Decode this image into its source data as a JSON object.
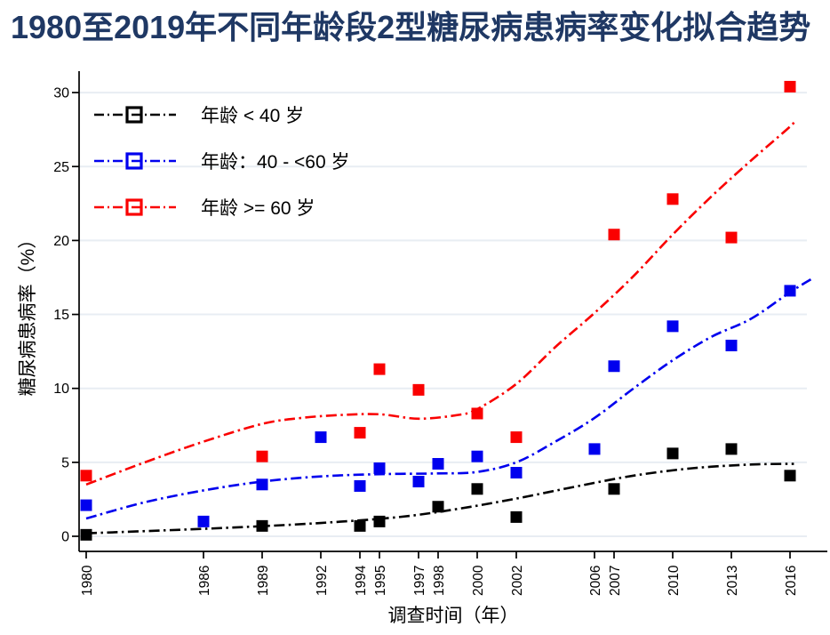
{
  "title": "1980至2019年不同年龄段2型糖尿病患病率变化拟合趋势",
  "colors": {
    "title": "#1f3864",
    "axis": "#000000",
    "gridline": "#e8edf3",
    "series_black": "#000000",
    "series_blue": "#0000ee",
    "series_red": "#fa0000"
  },
  "legend": {
    "items": [
      {
        "label": "年龄 < 40 岁",
        "color": "#000000"
      },
      {
        "label": "年龄：40 - <60 岁",
        "color": "#0000ee"
      },
      {
        "label": "年龄 >= 60 岁",
        "color": "#fa0000"
      }
    ]
  },
  "axes": {
    "x_title": "调查时间（年）",
    "y_title": "糖尿病患病率（%）"
  },
  "chart_data": {
    "type": "scatter",
    "title": "1980至2019年不同年龄段2型糖尿病患病率变化拟合趋势",
    "xlabel": "调查时间（年）",
    "ylabel": "糖尿病患病率（%）",
    "xlim": [
      1979.6,
      2018.2
    ],
    "ylim": [
      0,
      30
    ],
    "x_ticks": [
      1980,
      1986,
      1989,
      1992,
      1994,
      1995,
      1997,
      1998,
      2000,
      2002,
      2006,
      2007,
      2010,
      2013,
      2016
    ],
    "y_ticks": [
      0,
      5,
      10,
      15,
      20,
      25,
      30
    ],
    "grid": "horizontal",
    "legend_position": "top-left",
    "marker": "filled-square",
    "line_style": "dash-dot",
    "series": [
      {
        "name": "年龄 < 40 岁",
        "color": "#000000",
        "points": [
          [
            1980,
            0.1
          ],
          [
            1989,
            0.7
          ],
          [
            1994,
            0.7
          ],
          [
            1995,
            1.0
          ],
          [
            1998,
            2.0
          ],
          [
            2000,
            3.2
          ],
          [
            2002,
            1.3
          ],
          [
            2007,
            3.2
          ],
          [
            2010,
            5.6
          ],
          [
            2013,
            5.9
          ],
          [
            2016,
            4.1
          ]
        ],
        "trend": [
          [
            1980,
            0.2
          ],
          [
            1984,
            0.4
          ],
          [
            1988,
            0.62
          ],
          [
            1992,
            0.9
          ],
          [
            1996,
            1.3
          ],
          [
            1999,
            1.85
          ],
          [
            2002,
            2.55
          ],
          [
            2005,
            3.35
          ],
          [
            2008,
            4.1
          ],
          [
            2011,
            4.6
          ],
          [
            2014,
            4.85
          ],
          [
            2016.2,
            4.9
          ]
        ]
      },
      {
        "name": "年龄：40 - <60 岁",
        "color": "#0000ee",
        "points": [
          [
            1980,
            2.1
          ],
          [
            1986,
            1.0
          ],
          [
            1989,
            3.5
          ],
          [
            1992,
            6.7
          ],
          [
            1994,
            3.4
          ],
          [
            1995,
            4.6
          ],
          [
            1997,
            3.7
          ],
          [
            1998,
            4.9
          ],
          [
            2000,
            5.4
          ],
          [
            2002,
            4.3
          ],
          [
            2006,
            5.9
          ],
          [
            2007,
            11.5
          ],
          [
            2010,
            14.2
          ],
          [
            2013,
            12.9
          ],
          [
            2016,
            16.6
          ]
        ],
        "trend": [
          [
            1980,
            1.2
          ],
          [
            1983,
            2.3
          ],
          [
            1986,
            3.1
          ],
          [
            1989,
            3.7
          ],
          [
            1992,
            4.05
          ],
          [
            1995,
            4.2
          ],
          [
            1998,
            4.25
          ],
          [
            2000,
            4.35
          ],
          [
            2002,
            5.0
          ],
          [
            2004,
            6.4
          ],
          [
            2006,
            8.0
          ],
          [
            2008,
            10.0
          ],
          [
            2010,
            11.9
          ],
          [
            2012,
            13.5
          ],
          [
            2014,
            14.7
          ],
          [
            2016,
            16.5
          ],
          [
            2017.1,
            17.4
          ]
        ]
      },
      {
        "name": "年龄 >= 60 岁",
        "color": "#fa0000",
        "points": [
          [
            1980,
            4.1
          ],
          [
            1989,
            5.4
          ],
          [
            1994,
            7.0
          ],
          [
            1995,
            11.3
          ],
          [
            1997,
            9.9
          ],
          [
            2000,
            8.3
          ],
          [
            2002,
            6.7
          ],
          [
            2007,
            20.4
          ],
          [
            2010,
            22.8
          ],
          [
            2013,
            20.2
          ],
          [
            2016,
            30.4
          ]
        ],
        "trend": [
          [
            1980,
            3.5
          ],
          [
            1983,
            5.0
          ],
          [
            1986,
            6.4
          ],
          [
            1989,
            7.6
          ],
          [
            1991,
            8.0
          ],
          [
            1993,
            8.2
          ],
          [
            1995,
            8.25
          ],
          [
            1997,
            7.95
          ],
          [
            1999,
            8.2
          ],
          [
            2000,
            8.6
          ],
          [
            2002,
            10.3
          ],
          [
            2004,
            12.8
          ],
          [
            2006,
            15.1
          ],
          [
            2008,
            17.6
          ],
          [
            2010,
            20.4
          ],
          [
            2012,
            23.0
          ],
          [
            2014,
            25.4
          ],
          [
            2016,
            27.7
          ],
          [
            2016.3,
            28.2
          ]
        ]
      }
    ]
  }
}
